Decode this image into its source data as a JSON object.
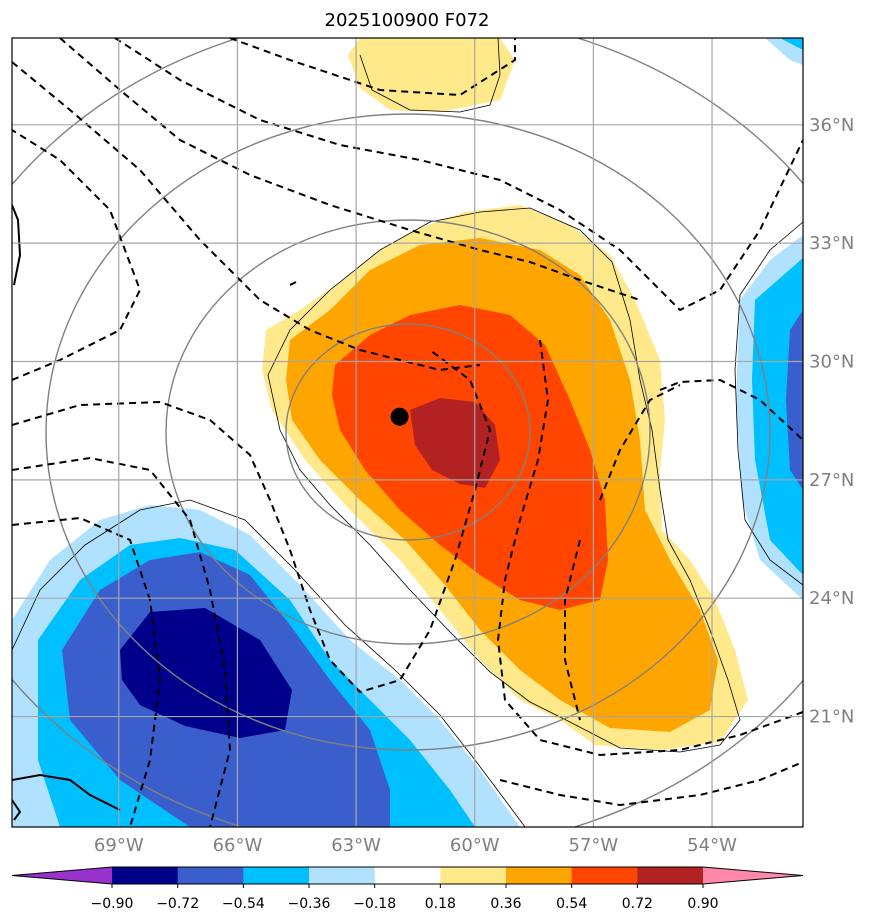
{
  "chart_data": {
    "type": "contour_map",
    "title": "2025100900 F072",
    "xlabel": "",
    "ylabel": "",
    "xlim": [
      -71.7,
      -51.7
    ],
    "ylim": [
      18.2,
      38.2
    ],
    "x_ticks": [
      {
        "value": -69,
        "label": "69°W"
      },
      {
        "value": -66,
        "label": "66°W"
      },
      {
        "value": -63,
        "label": "63°W"
      },
      {
        "value": -60,
        "label": "60°W"
      },
      {
        "value": -57,
        "label": "57°W"
      },
      {
        "value": -54,
        "label": "54°W"
      }
    ],
    "y_ticks": [
      {
        "value": 36,
        "label": "36°N"
      },
      {
        "value": 33,
        "label": "33°N"
      },
      {
        "value": 30,
        "label": "30°N"
      },
      {
        "value": 27,
        "label": "27°N"
      },
      {
        "value": 24,
        "label": "24°N"
      },
      {
        "value": 21,
        "label": "21°N"
      }
    ],
    "grid": true,
    "center_marker": {
      "lon": -61.9,
      "lat": 28.6
    },
    "colorbar": {
      "levels": [
        "−0.90",
        "−0.72",
        "−0.54",
        "−0.36",
        "−0.18",
        "0.18",
        "0.36",
        "0.54",
        "0.72",
        "0.90"
      ],
      "colors": [
        "#9932cc",
        "#00008b",
        "#3a5fcd",
        "#00bfff",
        "#b0e2ff",
        "#ffffff",
        "#ffe98a",
        "#ffa500",
        "#ff4500",
        "#b22222",
        "#ff88aa"
      ],
      "extend": "both"
    }
  }
}
